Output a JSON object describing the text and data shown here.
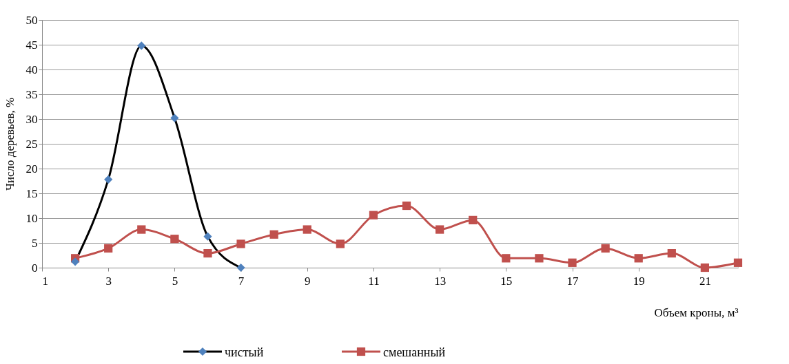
{
  "chart_data": {
    "type": "line",
    "xlabel": "Объем кроны, м³",
    "ylabel": "Число деревьев, %",
    "xlim": [
      1,
      22
    ],
    "xticks": [
      1,
      3,
      5,
      7,
      9,
      11,
      13,
      15,
      17,
      19,
      21
    ],
    "ylim": [
      0,
      50
    ],
    "yticks": [
      0,
      5,
      10,
      15,
      20,
      25,
      30,
      35,
      40,
      45,
      50
    ],
    "grid": "y",
    "legend": "bottom",
    "series": [
      {
        "name": "чистый",
        "color": "#000000",
        "colors": [
          "#4f81bd",
          "#4f81bd",
          "#4f81bd",
          "#4f81bd",
          "#4f81bd",
          "#4f81bd"
        ],
        "marker": "diamond",
        "x": [
          2,
          3,
          4,
          5,
          6,
          7
        ],
        "values": [
          1.2,
          17.8,
          44.8,
          30.2,
          6.3,
          0
        ]
      },
      {
        "name": "смешанный",
        "color": "#c0504d",
        "colors": [
          "#c0504d",
          "#c0504d",
          "#c0504d",
          "#c0504d",
          "#c0504d",
          "#c0504d",
          "#c0504d",
          "#c0504d",
          "#c0504d",
          "#c0504d",
          "#c0504d",
          "#c0504d",
          "#c0504d",
          "#c0504d",
          "#c0504d",
          "#c0504d",
          "#c0504d",
          "#c0504d",
          "#c0504d",
          "#c0504d",
          "#c0504d"
        ],
        "marker": "square",
        "x": [
          2,
          3,
          4,
          5,
          6,
          7,
          8,
          9,
          10,
          11,
          12,
          13,
          14,
          15,
          16,
          17,
          18,
          19,
          20,
          21,
          22
        ],
        "values": [
          1.9,
          3.9,
          7.7,
          5.8,
          2.9,
          4.8,
          6.7,
          7.7,
          4.8,
          10.6,
          12.5,
          7.7,
          9.6,
          1.9,
          1.9,
          1.0,
          3.9,
          1.9,
          2.9,
          0,
          1.0
        ]
      }
    ]
  }
}
